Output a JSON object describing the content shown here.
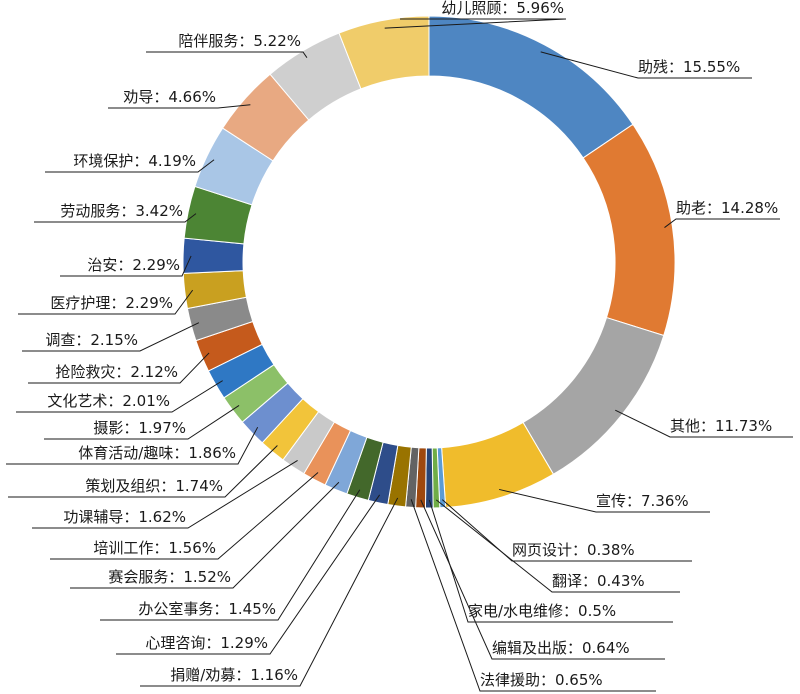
{
  "chart_data": {
    "type": "pie",
    "variant": "donut",
    "title": "",
    "legend": "none",
    "separator": "：",
    "series": [
      {
        "label": "助残",
        "value": 15.55,
        "display": "15.55%",
        "color": "#4e86c2"
      },
      {
        "label": "助老",
        "value": 14.28,
        "display": "14.28%",
        "color": "#e07a32"
      },
      {
        "label": "其他",
        "value": 11.73,
        "display": "11.73%",
        "color": "#a5a5a5"
      },
      {
        "label": "宣传",
        "value": 7.36,
        "display": "7.36%",
        "color": "#f0bc2c"
      },
      {
        "label": "网页设计",
        "value": 0.38,
        "display": "0.38%",
        "color": "#5b9bd5"
      },
      {
        "label": "翻译",
        "value": 0.43,
        "display": "0.43%",
        "color": "#70ad47"
      },
      {
        "label": "家电/水电维修",
        "value": 0.5,
        "display": "0.5%",
        "color": "#264478"
      },
      {
        "label": "编辑及出版",
        "value": 0.64,
        "display": "0.64%",
        "color": "#9e480e"
      },
      {
        "label": "法律援助",
        "value": 0.65,
        "display": "0.65%",
        "color": "#636363"
      },
      {
        "label": "捐赠/劝募",
        "value": 1.16,
        "display": "1.16%",
        "color": "#997300"
      },
      {
        "label": "心理咨询",
        "value": 1.29,
        "display": "1.29%",
        "color": "#2e4d8a"
      },
      {
        "label": "办公室事务",
        "value": 1.45,
        "display": "1.45%",
        "color": "#43682b"
      },
      {
        "label": "赛会服务",
        "value": 1.52,
        "display": "1.52%",
        "color": "#7fa7d8"
      },
      {
        "label": "培训工作",
        "value": 1.56,
        "display": "1.56%",
        "color": "#e9925a"
      },
      {
        "label": "功课辅导",
        "value": 1.62,
        "display": "1.62%",
        "color": "#c9c9c9"
      },
      {
        "label": "策划及组织",
        "value": 1.74,
        "display": "1.74%",
        "color": "#f2c43a"
      },
      {
        "label": "体育活动/趣味",
        "value": 1.86,
        "display": "1.86%",
        "color": "#6d8fcf"
      },
      {
        "label": "摄影",
        "value": 1.97,
        "display": "1.97%",
        "color": "#8cc068"
      },
      {
        "label": "文化艺术",
        "value": 2.01,
        "display": "2.01%",
        "color": "#2f78c4"
      },
      {
        "label": "抢险救灾",
        "value": 2.12,
        "display": "2.12%",
        "color": "#c55a1c"
      },
      {
        "label": "调查",
        "value": 2.15,
        "display": "2.15%",
        "color": "#8a8a8a"
      },
      {
        "label": "医疗护理",
        "value": 2.29,
        "display": "2.29%",
        "color": "#c9a020"
      },
      {
        "label": "治安",
        "value": 2.29,
        "display": "2.29%",
        "color": "#2f57a0"
      },
      {
        "label": "劳动服务",
        "value": 3.42,
        "display": "3.42%",
        "color": "#4c8534"
      },
      {
        "label": "环境保护",
        "value": 4.19,
        "display": "4.19%",
        "color": "#a9c6e6"
      },
      {
        "label": "劝导",
        "value": 4.66,
        "display": "4.66%",
        "color": "#e8a982"
      },
      {
        "label": "陪伴服务",
        "value": 5.22,
        "display": "5.22%",
        "color": "#cfcfcf"
      },
      {
        "label": "幼儿照顾",
        "value": 5.96,
        "display": "5.96%",
        "color": "#f0cc6a"
      }
    ]
  }
}
